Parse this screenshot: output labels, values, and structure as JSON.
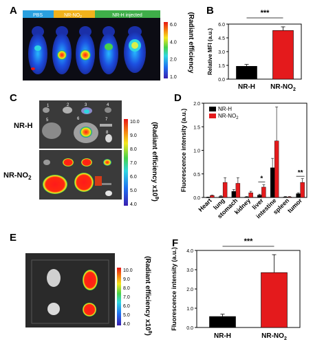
{
  "panels": {
    "A": {
      "letter": "A",
      "tags": [
        "PBS",
        "NR-NO",
        "2",
        "NR-H injected"
      ],
      "tag_colors": [
        "#2aa0e0",
        "#f2b21c",
        "#3fae49"
      ],
      "scale_ticks": [
        "6.0",
        "4.0",
        "2.0",
        "1.0"
      ],
      "scale_label": "(Radiant efficiency"
    },
    "B": {
      "letter": "B",
      "significance": "***",
      "bar_colors": [
        "#000000",
        "#e41a1c"
      ]
    },
    "C": {
      "letter": "C",
      "row_labels": [
        "NR-H",
        "NR-NO",
        "2"
      ],
      "organ_numbers": [
        "1",
        "2",
        "3",
        "4",
        "5",
        "6",
        "7",
        "8"
      ],
      "scale_ticks": [
        "10.0",
        "9.0",
        "8.0",
        "7.0",
        "6.0",
        "5.0",
        "4.0"
      ],
      "scale_label": "(Radiant efficiency  x10",
      "scale_exp": "8",
      "scale_close": ")"
    },
    "D": {
      "letter": "D",
      "legend": [
        "NR-H",
        "NR-NO",
        "2"
      ],
      "marks": [
        "*",
        "**"
      ]
    },
    "E": {
      "letter": "E",
      "scale_ticks": [
        "10.0",
        "9.0",
        "8.0",
        "7.0",
        "6.0",
        "5.0",
        "4.0"
      ],
      "scale_label": "(Radiant efficiency x10",
      "scale_exp": "8",
      "scale_close": ")"
    },
    "F": {
      "letter": "F",
      "significance": "***",
      "bar_colors": [
        "#000000",
        "#e41a1c"
      ]
    }
  },
  "chart_data": [
    {
      "panel": "B",
      "type": "bar",
      "categories": [
        "NR-H",
        "NR-NO2"
      ],
      "category_parts": [
        [
          "NR-H",
          ""
        ],
        [
          "NR-NO",
          "2"
        ]
      ],
      "values": [
        1.4,
        5.3
      ],
      "errors": [
        0.2,
        0.4
      ],
      "ylabel": "Relative MFI (a.u.)",
      "ylim": [
        0,
        6
      ],
      "yticks": [
        "0.0",
        "1.5",
        "3.0",
        "4.5",
        "6.0"
      ],
      "ytick_values": [
        0,
        1.5,
        3,
        4.5,
        6
      ]
    },
    {
      "panel": "D",
      "type": "bar",
      "categories": [
        "Heart",
        "lung",
        "stomach",
        "kidney",
        "liver",
        "intestine",
        "spleen",
        "tumor"
      ],
      "series": [
        {
          "name": "NR-H",
          "values": [
            0.0,
            0.02,
            0.13,
            0.01,
            0.05,
            0.63,
            0.01,
            0.08
          ],
          "errors": [
            0.01,
            0.02,
            0.04,
            0.01,
            0.02,
            0.2,
            0.01,
            0.02
          ]
        },
        {
          "name": "NR-NO2",
          "values": [
            0.04,
            0.32,
            0.3,
            0.1,
            0.22,
            1.2,
            0.01,
            0.32
          ],
          "errors": [
            0.01,
            0.1,
            0.12,
            0.03,
            0.05,
            0.72,
            0.01,
            0.08
          ]
        }
      ],
      "ylabel": "Fluorescence intensity (a.u.)",
      "ylim": [
        0,
        2.0
      ],
      "yticks": [
        "0.0",
        "0.5",
        "1.0",
        "1.5",
        "2.0"
      ],
      "ytick_values": [
        0,
        0.5,
        1.0,
        1.5,
        2.0
      ]
    },
    {
      "panel": "F",
      "type": "bar",
      "categories": [
        "NR-H",
        "NR-NO2"
      ],
      "category_parts": [
        [
          "NR-H",
          ""
        ],
        [
          "NR-NO",
          "2"
        ]
      ],
      "values": [
        0.57,
        2.85
      ],
      "errors": [
        0.12,
        0.93
      ],
      "ylabel": "Fluorescence intensity (a.u.)",
      "ylim": [
        0,
        4.0
      ],
      "yticks": [
        "0.0",
        "1.0",
        "2.0",
        "3.0",
        "4.0"
      ],
      "ytick_values": [
        0,
        1,
        2,
        3,
        4
      ]
    }
  ]
}
